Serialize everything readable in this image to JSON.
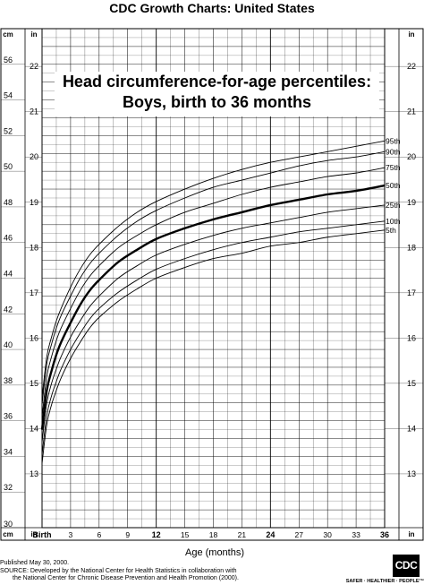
{
  "header": {
    "title": "CDC Growth Charts: United States"
  },
  "chart_title": {
    "line1": "Head circumference-for-age percentiles:",
    "line2": "Boys, birth to 36 months"
  },
  "footer": {
    "published": "Published May 30, 2000.",
    "source_line1": "SOURCE: Developed by the National Center for Health Statistics in collaboration with",
    "source_line2": "the National Center for Chronic Disease Prevention and Health Promotion (2000)."
  },
  "logo": {
    "text": "CDC",
    "tagline": "SAFER · HEALTHIER · PEOPLE™"
  },
  "chart_data": {
    "type": "line",
    "title": "Head circumference-for-age percentiles: Boys, birth to 36 months",
    "xlabel": "Age (months)",
    "ylabel_left_unit": "cm",
    "ylabel_right_unit": "in",
    "xlim": [
      0,
      36
    ],
    "ylim_cm": [
      30,
      58
    ],
    "x_ticks": [
      {
        "value": 0,
        "label": "Birth",
        "bold": true
      },
      {
        "value": 3,
        "label": "3",
        "bold": false
      },
      {
        "value": 6,
        "label": "6",
        "bold": false
      },
      {
        "value": 9,
        "label": "9",
        "bold": false
      },
      {
        "value": 12,
        "label": "12",
        "bold": true
      },
      {
        "value": 15,
        "label": "15",
        "bold": false
      },
      {
        "value": 18,
        "label": "18",
        "bold": false
      },
      {
        "value": 21,
        "label": "21",
        "bold": false
      },
      {
        "value": 24,
        "label": "24",
        "bold": true
      },
      {
        "value": 27,
        "label": "27",
        "bold": false
      },
      {
        "value": 30,
        "label": "30",
        "bold": false
      },
      {
        "value": 33,
        "label": "33",
        "bold": false
      },
      {
        "value": 36,
        "label": "36",
        "bold": true
      }
    ],
    "y_ticks_cm": [
      "32",
      "34",
      "36",
      "38",
      "40",
      "42",
      "44",
      "46",
      "48",
      "50",
      "52",
      "54",
      "56"
    ],
    "y_ticks_in": [
      "13",
      "14",
      "15",
      "16",
      "17",
      "18",
      "19",
      "20",
      "21",
      "22"
    ],
    "y_axis_end_labels": {
      "cm_bottom": "30",
      "cm_unit": "cm",
      "in_unit": "in"
    },
    "grid": true,
    "x": [
      0,
      0.5,
      1,
      1.5,
      2,
      3,
      4,
      5,
      6,
      8,
      10,
      12,
      15,
      18,
      21,
      24,
      27,
      30,
      33,
      36
    ],
    "series": [
      {
        "name": "95th",
        "bold": false,
        "values": [
          37.3,
          39.6,
          40.7,
          41.6,
          42.3,
          43.5,
          44.5,
          45.3,
          45.9,
          46.9,
          47.7,
          48.3,
          49.0,
          49.6,
          50.1,
          50.5,
          50.8,
          51.1,
          51.4,
          51.7
        ]
      },
      {
        "name": "90th",
        "bold": false,
        "values": [
          36.9,
          39.2,
          40.3,
          41.2,
          41.9,
          43.0,
          44.0,
          44.8,
          45.4,
          46.4,
          47.2,
          47.8,
          48.5,
          49.1,
          49.5,
          49.9,
          50.3,
          50.6,
          50.8,
          51.1
        ]
      },
      {
        "name": "75th",
        "bold": false,
        "values": [
          36.2,
          38.5,
          39.6,
          40.5,
          41.2,
          42.3,
          43.3,
          44.1,
          44.7,
          45.7,
          46.4,
          47.0,
          47.7,
          48.2,
          48.7,
          49.1,
          49.4,
          49.7,
          49.9,
          50.2
        ]
      },
      {
        "name": "50th",
        "bold": true,
        "values": [
          35.5,
          37.7,
          38.8,
          39.7,
          40.4,
          41.5,
          42.5,
          43.3,
          43.9,
          44.9,
          45.6,
          46.2,
          46.8,
          47.3,
          47.7,
          48.1,
          48.4,
          48.7,
          48.9,
          49.2
        ]
      },
      {
        "name": "25th",
        "bold": false,
        "values": [
          34.8,
          37.0,
          38.1,
          38.9,
          39.6,
          40.7,
          41.6,
          42.4,
          43.0,
          44.0,
          44.7,
          45.3,
          45.9,
          46.4,
          46.8,
          47.1,
          47.4,
          47.7,
          47.9,
          48.1
        ]
      },
      {
        "name": "10th",
        "bold": false,
        "values": [
          34.1,
          36.3,
          37.4,
          38.2,
          38.9,
          40.0,
          40.9,
          41.7,
          42.3,
          43.2,
          43.9,
          44.5,
          45.1,
          45.6,
          46.0,
          46.3,
          46.6,
          46.8,
          47.0,
          47.2
        ]
      },
      {
        "name": "5th",
        "bold": false,
        "values": [
          33.6,
          35.8,
          36.9,
          37.7,
          38.4,
          39.5,
          40.4,
          41.2,
          41.8,
          42.7,
          43.4,
          44.0,
          44.6,
          45.1,
          45.4,
          45.8,
          46.0,
          46.3,
          46.5,
          46.7
        ]
      }
    ],
    "colors": {
      "line": "#000000",
      "grid": "#000000",
      "background": "#ffffff"
    }
  }
}
